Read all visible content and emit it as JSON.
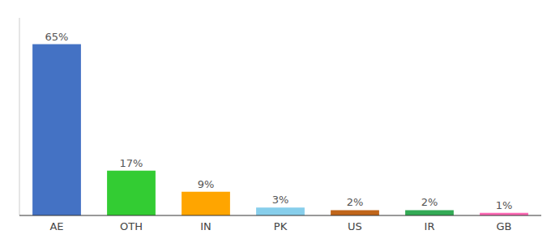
{
  "chart_data": {
    "type": "bar",
    "categories": [
      "AE",
      "OTH",
      "IN",
      "PK",
      "US",
      "IR",
      "GB"
    ],
    "values": [
      65,
      17,
      9,
      3,
      2,
      2,
      1
    ],
    "value_labels": [
      "65%",
      "17%",
      "9%",
      "3%",
      "2%",
      "2%",
      "1%"
    ],
    "colors": [
      "#4472C4",
      "#33CC33",
      "#FFA500",
      "#87CEEB",
      "#C0651A",
      "#33AA55",
      "#FF69B4"
    ],
    "ylim": [
      0,
      75
    ],
    "data_labels": true,
    "tick_labels": "x"
  }
}
